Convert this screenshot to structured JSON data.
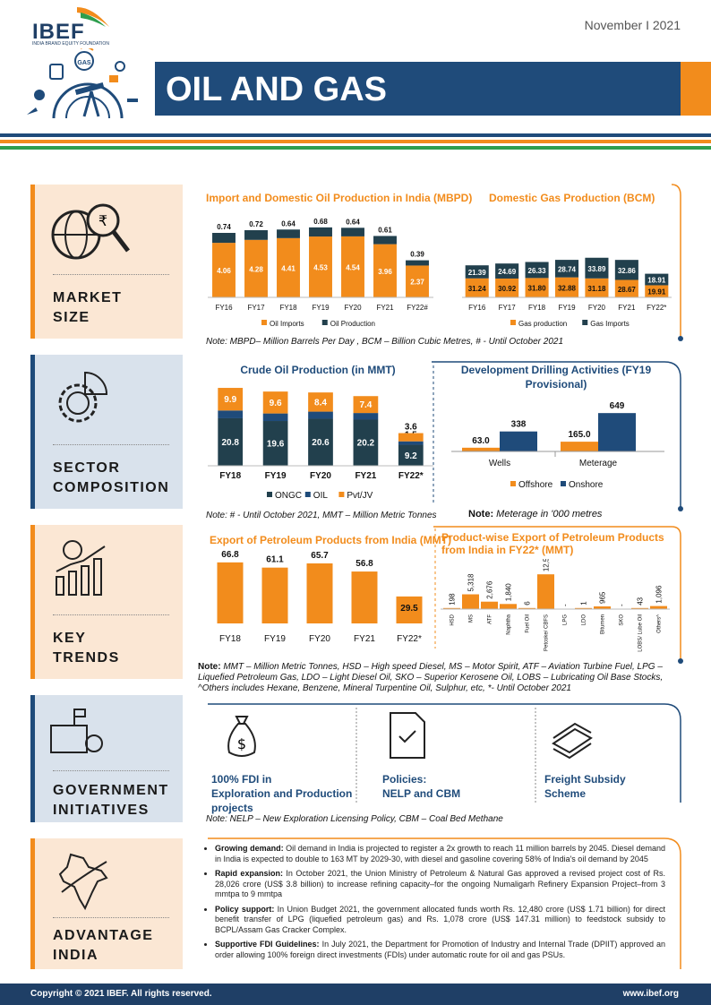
{
  "header": {
    "logo": "IBEF",
    "logo_sub": "INDIA BRAND EQUITY FOUNDATION",
    "logo_badge": "GAS",
    "date": "November I 2021",
    "title": "OIL AND GAS"
  },
  "colors": {
    "navy": "#1f4b7a",
    "orange": "#f28c1c",
    "green": "#2e9e4d",
    "dark_bar": "#22404d"
  },
  "sections": {
    "market_size": [
      "MARKET",
      "SIZE"
    ],
    "sector_composition": [
      "SECTOR",
      "COMPOSITION"
    ],
    "key_trends": [
      "KEY",
      "TRENDS"
    ],
    "government_initiatives": [
      "GOVERNMENT",
      "INITIATIVES"
    ],
    "advantage_india": [
      "ADVANTAGE",
      "INDIA"
    ]
  },
  "market_size": {
    "oil_title": "Import and Domestic Oil Production in India (MBPD)",
    "gas_title": "Domestic Gas Production (BCM)",
    "note": "Note: MBPD– Million Barrels Per Day , BCM – Billion Cubic Metres, # - Until October 2021",
    "note_prefix": "Note:"
  },
  "sector": {
    "crude_title": "Crude Oil Production (in MMT)",
    "drill_title_1": "Development Drilling Activities (FY19",
    "drill_title_2": "Provisional)",
    "note1": "Note: # - Until October 2021, MMT – Million Metric Tonnes",
    "note2_prefix": "Note:",
    "note2": " Meterage in '000 metres"
  },
  "trends": {
    "export_title": "Export of Petroleum Products from India (MMT)",
    "product_title_1": "Product-wise Export of Petroleum Products",
    "product_title_2": "from India in FY22* (MMT)",
    "note_prefix": "Note:",
    "note": " MMT – Million Metric Tonnes, HSD – High speed Diesel, MS – Motor Spirit, ATF – Aviation Turbine Fuel, LPG – Liquefied Petroleum Gas, LDO – Light Diesel Oil, SKO – Superior Kerosene Oil, LOBS – Lubricating Oil Base Stocks, ^Others includes Hexane, Benzene, Mineral Turpentine Oil, Sulphur, etc, *- Until October 2021"
  },
  "government": {
    "item1_line1": "100% FDI in",
    "item1_line2": "Exploration and Production",
    "item1_line3": "projects",
    "item2_line1": "Policies:",
    "item2_line2": "NELP and CBM",
    "item3_line1": "Freight Subsidy",
    "item3_line2": "Scheme",
    "note": "Note: NELP – New Exploration Licensing Policy, CBM – Coal Bed Methane"
  },
  "advantage": [
    {
      "head": "Growing demand:",
      "text": " Oil demand in India is projected to register a 2x growth to reach 11 million barrels by 2045. Diesel demand in India is expected to double to 163 MT by 2029-30, with diesel and gasoline covering 58% of India's oil demand by 2045"
    },
    {
      "head": "Rapid expansion:",
      "text": " In October 2021, the Union Ministry of Petroleum & Natural Gas approved a revised project cost of Rs. 28,026 crore (US$ 3.8 billion) to increase refining capacity–for the ongoing Numaligarh Refinery Expansion Project–from 3 mmtpa to 9 mmtpa"
    },
    {
      "head": "Policy support:",
      "text": " In Union Budget 2021, the government allocated funds worth Rs. 12,480 crore (US$ 1.71 billion) for direct benefit transfer of LPG (liquefied petroleum gas) and Rs. 1,078 crore (US$ 147.31 million) to feedstock subsidy to BCPL/Assam Gas Cracker Complex."
    },
    {
      "head": "Supportive FDI Guidelines:",
      "text": " In July 2021, the Department for Promotion of Industry and Internal Trade (DPIIT) approved an order allowing 100% foreign direct investments (FDIs) under automatic route for oil and gas PSUs."
    }
  ],
  "footer": {
    "copyright": "Copyright © 2021 IBEF. All rights reserved.",
    "url": "www.ibef.org"
  },
  "chart_data": [
    {
      "id": "oil",
      "type": "bar",
      "stacked": true,
      "title": "Import and Domestic Oil Production in India (MBPD)",
      "categories": [
        "FY16",
        "FY17",
        "FY18",
        "FY19",
        "FY20",
        "FY21",
        "FY22#"
      ],
      "series": [
        {
          "name": "Oil Imports",
          "values": [
            4.06,
            4.28,
            4.41,
            4.53,
            4.54,
            3.96,
            2.37
          ],
          "color": "#f28c1c"
        },
        {
          "name": "Oil Production",
          "values": [
            0.74,
            0.72,
            0.64,
            0.68,
            0.64,
            0.61,
            0.39
          ],
          "color": "#22404d"
        }
      ],
      "legend": "bottom"
    },
    {
      "id": "gas",
      "type": "bar",
      "stacked": true,
      "title": "Domestic Gas Production (BCM)",
      "categories": [
        "FY16",
        "FY17",
        "FY18",
        "FY19",
        "FY20",
        "FY21",
        "FY22*"
      ],
      "series": [
        {
          "name": "Gas production",
          "values": [
            31.24,
            30.92,
            31.8,
            32.88,
            31.18,
            28.67,
            19.91
          ],
          "color": "#f28c1c"
        },
        {
          "name": "Gas Imports",
          "values": [
            21.39,
            24.69,
            26.33,
            28.74,
            33.89,
            32.86,
            18.91
          ],
          "color": "#22404d"
        }
      ],
      "legend": "bottom"
    },
    {
      "id": "crude",
      "type": "bar",
      "stacked": true,
      "title": "Crude Oil Production (in MMT)",
      "categories": [
        "FY18",
        "FY19",
        "FY20",
        "FY21",
        "FY22*"
      ],
      "series": [
        {
          "name": "ONGC",
          "values": [
            20.8,
            19.6,
            20.6,
            20.2,
            9.2
          ],
          "color": "#22404d"
        },
        {
          "name": "OIL",
          "values": [
            3.4,
            3.3,
            3.1,
            2.9,
            1.5
          ],
          "color": "#1f4b7a"
        },
        {
          "name": "Pvt/JV",
          "values": [
            9.9,
            9.6,
            8.4,
            7.4,
            3.6
          ],
          "color": "#f28c1c"
        }
      ],
      "legend": "bottom"
    },
    {
      "id": "drill",
      "type": "bar",
      "title": "Development Drilling Activities (FY19 Provisional)",
      "categories": [
        "Wells",
        "Meterage"
      ],
      "series": [
        {
          "name": "Offshore",
          "values": [
            63.0,
            165.0
          ],
          "color": "#f28c1c"
        },
        {
          "name": "Onshore",
          "values": [
            338,
            649
          ],
          "color": "#1f4b7a"
        }
      ],
      "legend": "bottom"
    },
    {
      "id": "export",
      "type": "bar",
      "title": "Export of Petroleum Products from India (MMT)",
      "categories": [
        "FY18",
        "FY19",
        "FY20",
        "FY21",
        "FY22*"
      ],
      "values": [
        66.8,
        61.1,
        65.7,
        56.8,
        29.5
      ],
      "color": "#f28c1c"
    },
    {
      "id": "product",
      "type": "bar",
      "title": "Product-wise Export of Petroleum Products from India in FY22* (MMT)",
      "categories": [
        "HSD",
        "MS",
        "ATF",
        "Naphtha",
        "Fuel Oil",
        "Petcoke/ CBFS",
        "LPG",
        "LDO",
        "Bitumen",
        "SKO",
        "LOBS/ Lube Oil",
        "Others^"
      ],
      "values": [
        198,
        5318,
        2676,
        1840,
        6,
        12521,
        null,
        1,
        965,
        null,
        43,
        1096
      ],
      "labels": [
        "198",
        "5,318",
        "2,676",
        "1,840",
        "6",
        "12,521",
        "-",
        "1",
        "965",
        "-",
        "43",
        "1,096"
      ],
      "color": "#f28c1c"
    }
  ]
}
